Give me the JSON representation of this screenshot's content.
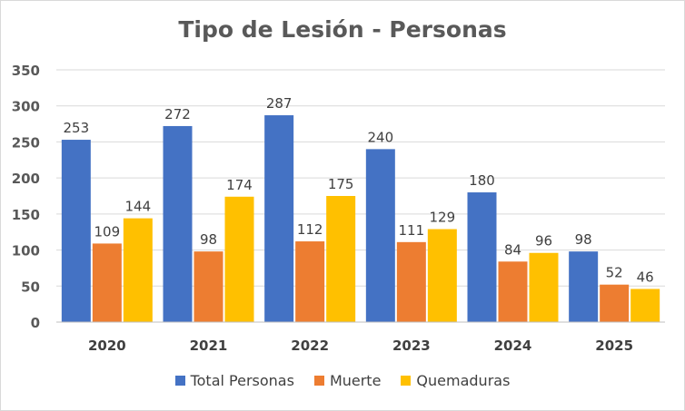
{
  "chart_data": {
    "type": "bar",
    "title": "Tipo de Lesión - Personas",
    "xlabel": "",
    "ylabel": "",
    "categories": [
      "2020",
      "2021",
      "2022",
      "2023",
      "2024",
      "2025"
    ],
    "series": [
      {
        "name": "Total Personas",
        "color": "#4472c4",
        "values": [
          253,
          272,
          287,
          240,
          180,
          98
        ]
      },
      {
        "name": "Muerte",
        "color": "#ed7d31",
        "values": [
          109,
          98,
          112,
          111,
          84,
          52
        ]
      },
      {
        "name": "Quemaduras",
        "color": "#ffc000",
        "values": [
          144,
          174,
          175,
          129,
          96,
          46
        ]
      }
    ],
    "ylim": [
      0,
      350
    ],
    "yticks": [
      0,
      50,
      100,
      150,
      200,
      250,
      300,
      350
    ],
    "grid": true,
    "legend_position": "bottom",
    "data_labels": true
  }
}
